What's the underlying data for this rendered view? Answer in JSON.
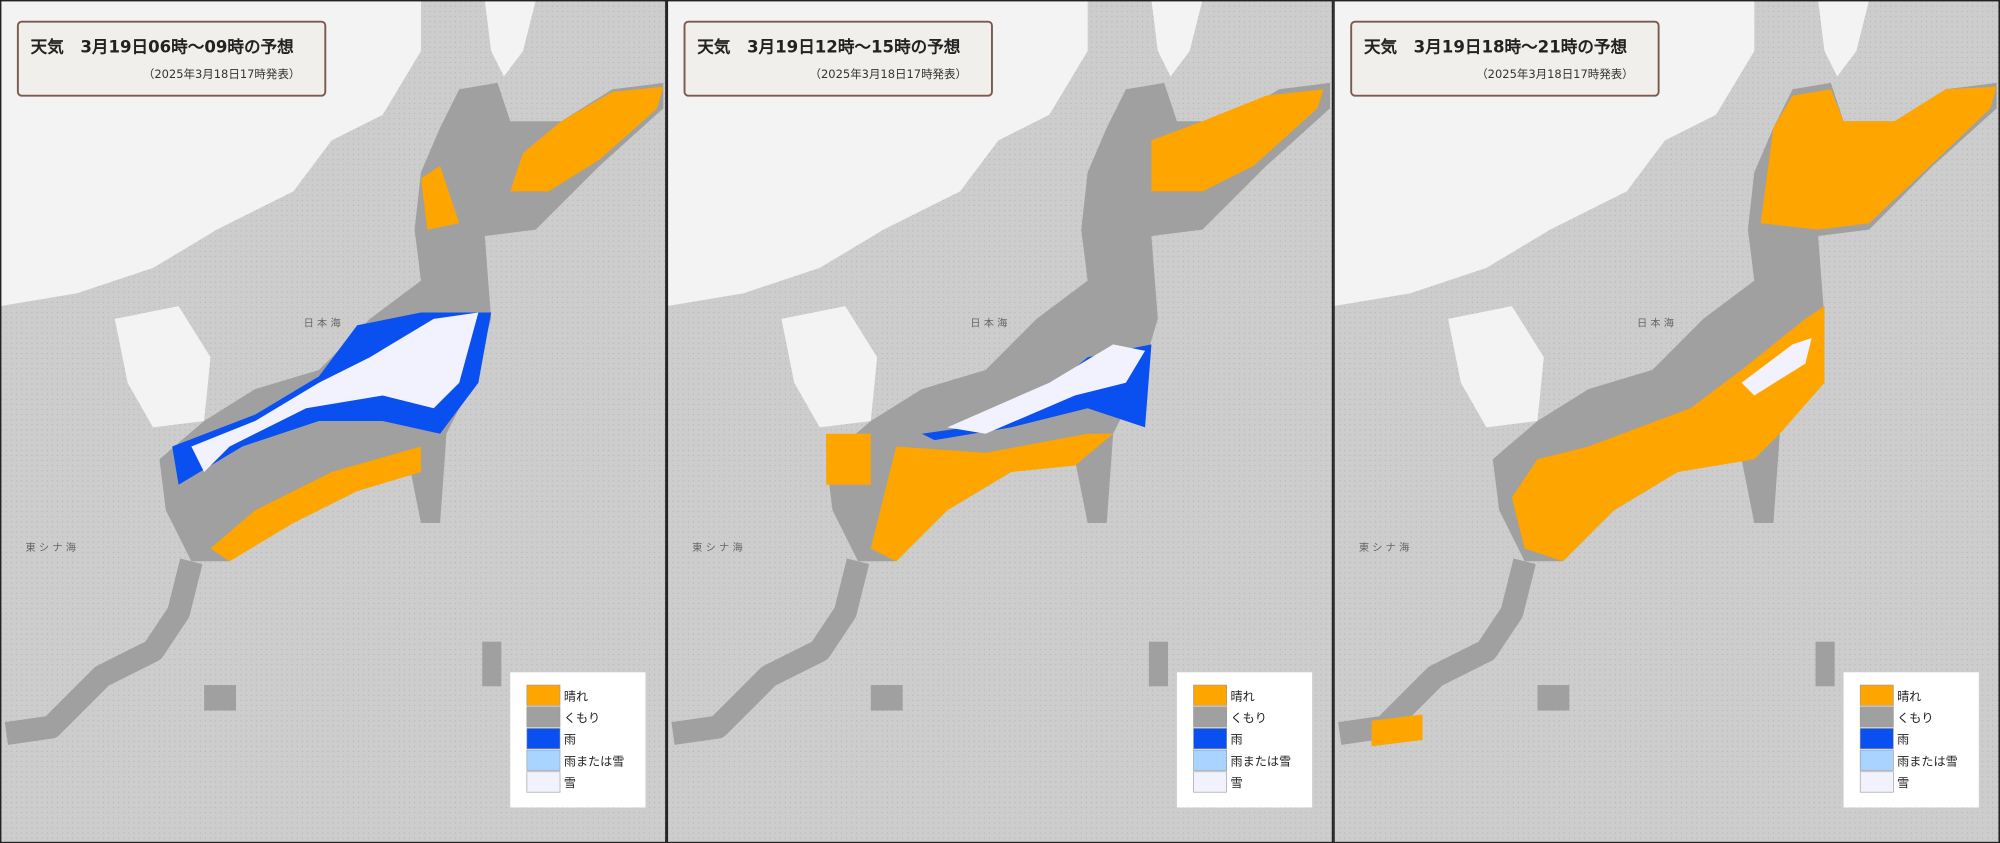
{
  "panels": [
    {
      "title": "天気　3月19日06時～09時の予想",
      "issued": "（2025年3月18日17時発表）"
    },
    {
      "title": "天気　3月19日12時～15時の予想",
      "issued": "（2025年3月18日17時発表）"
    },
    {
      "title": "天気　3月19日18時～21時の予想",
      "issued": "（2025年3月18日17時発表）"
    }
  ],
  "legend": [
    {
      "label": "晴れ",
      "color": "#ffa500"
    },
    {
      "label": "くもり",
      "color": "#a0a0a0"
    },
    {
      "label": "雨",
      "color": "#0a4ff0"
    },
    {
      "label": "雨または雪",
      "color": "#a8d4ff"
    },
    {
      "label": "雪",
      "color": "#f2f2ff"
    }
  ],
  "map_labels": [
    "日 本 海",
    "東 シ ナ 海"
  ]
}
